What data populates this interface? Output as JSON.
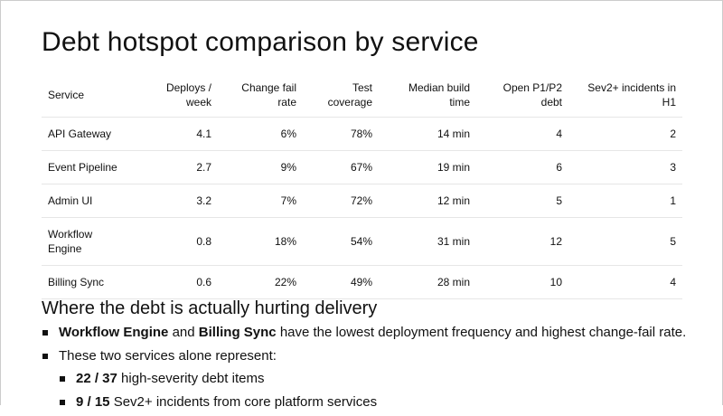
{
  "title": "Debt hotspot comparison by service",
  "table": {
    "header": [
      "Service",
      "Deploys / week",
      "Change fail rate",
      "Test coverage",
      "Median build time",
      "Open P1/P2 debt",
      "Sev2+ incidents in H1"
    ],
    "rows": [
      [
        "API Gateway",
        "4.1",
        "6%",
        "78%",
        "14 min",
        "4",
        "2"
      ],
      [
        "Event Pipeline",
        "2.7",
        "9%",
        "67%",
        "19 min",
        "6",
        "3"
      ],
      [
        "Admin UI",
        "3.2",
        "7%",
        "72%",
        "12 min",
        "5",
        "1"
      ],
      [
        "Workflow Engine",
        "0.8",
        "18%",
        "54%",
        "31 min",
        "12",
        "5"
      ],
      [
        "Billing Sync",
        "0.6",
        "22%",
        "49%",
        "28 min",
        "10",
        "4"
      ]
    ]
  },
  "section": {
    "title": "Where the debt is actually hurting delivery",
    "bullets": [
      {
        "level": 1,
        "parts": [
          {
            "text": "Workflow Engine",
            "bold": true
          },
          {
            "text": "and",
            "bold": false
          },
          {
            "text": "Billing Sync",
            "bold": true
          },
          {
            "text": "have the lowest deployment frequency and highest change-fail rate.",
            "bold": false
          }
        ]
      },
      {
        "level": 1,
        "parts": [
          {
            "text": "These two services alone represent:",
            "bold": false
          }
        ]
      },
      {
        "level": 2,
        "parts": [
          {
            "text": "22 / 37",
            "bold": true
          },
          {
            "text": "high-severity debt items",
            "bold": false
          }
        ]
      },
      {
        "level": 2,
        "parts": [
          {
            "text": "9 / 15",
            "bold": true
          },
          {
            "text": "Sev2+ incidents from core platform services",
            "bold": false
          }
        ]
      }
    ]
  }
}
